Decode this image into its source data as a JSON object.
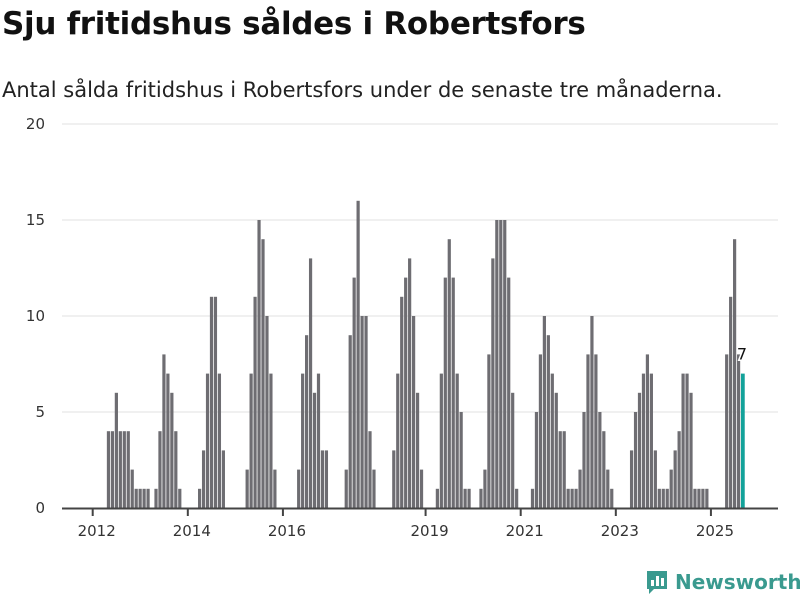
{
  "title": "Sju fritidshus såldes i Robertsfors",
  "subtitle": "Antal sålda fritidshus i Robertsfors under de senaste tre månaderna.",
  "brand": "Newsworthy",
  "colors": {
    "bar": "#6e6d72",
    "highlight": "#13a29a",
    "grid": "#e0e0e0",
    "axis": "#444444",
    "brand": "#3a9a8f"
  },
  "chart_data": {
    "type": "bar",
    "title": "Sju fritidshus såldes i Robertsfors",
    "xlabel": "",
    "ylabel": "",
    "ylim": [
      0,
      20
    ],
    "yticks": [
      0,
      5,
      10,
      15,
      20
    ],
    "grid": true,
    "start_month": "2012-01",
    "frequency": "monthly",
    "xticks": [
      {
        "label": "2012",
        "index": 0
      },
      {
        "label": "2014",
        "index": 24
      },
      {
        "label": "2016",
        "index": 48
      },
      {
        "label": "2019",
        "index": 84
      },
      {
        "label": "2021",
        "index": 108
      },
      {
        "label": "2023",
        "index": 132
      },
      {
        "label": "2025",
        "index": 156
      }
    ],
    "values": [
      0,
      0,
      0,
      0,
      4,
      4,
      6,
      4,
      4,
      4,
      2,
      1,
      1,
      1,
      1,
      0,
      1,
      4,
      8,
      7,
      6,
      4,
      1,
      0,
      0,
      0,
      0,
      1,
      3,
      7,
      11,
      11,
      7,
      3,
      0,
      0,
      0,
      0,
      0,
      2,
      7,
      11,
      15,
      14,
      10,
      7,
      2,
      0,
      0,
      0,
      0,
      0,
      2,
      7,
      9,
      13,
      6,
      7,
      3,
      3,
      0,
      0,
      0,
      0,
      2,
      9,
      12,
      16,
      10,
      10,
      4,
      2,
      0,
      0,
      0,
      0,
      3,
      7,
      11,
      12,
      13,
      10,
      6,
      2,
      0,
      0,
      0,
      1,
      7,
      12,
      14,
      12,
      7,
      5,
      1,
      1,
      0,
      0,
      1,
      2,
      8,
      13,
      15,
      15,
      15,
      12,
      6,
      1,
      0,
      0,
      0,
      1,
      5,
      8,
      10,
      9,
      7,
      6,
      4,
      4,
      1,
      1,
      1,
      2,
      5,
      8,
      10,
      8,
      5,
      4,
      2,
      1,
      0,
      0,
      0,
      0,
      3,
      5,
      6,
      7,
      8,
      7,
      3,
      1,
      1,
      1,
      2,
      3,
      4,
      7,
      7,
      6,
      1,
      1,
      1,
      1,
      0,
      0,
      0,
      0,
      8,
      11,
      14,
      8,
      7
    ],
    "highlight_last": true,
    "annotation": {
      "label": "7",
      "index": 164
    }
  }
}
